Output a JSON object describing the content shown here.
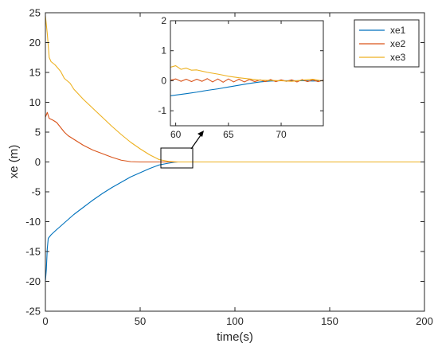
{
  "chart_data": {
    "type": "line",
    "title": "",
    "xlabel": "time(s)",
    "ylabel": "xe (m)",
    "xlim": [
      0,
      200
    ],
    "ylim": [
      -25,
      25
    ],
    "xticks": [
      "0",
      "50",
      "100",
      "150",
      "200"
    ],
    "yticks": [
      "25",
      "20",
      "15",
      "10",
      "5",
      "0",
      "-5",
      "-10",
      "-15",
      "-20",
      "-25"
    ],
    "grid": false,
    "legend_position": "top-right",
    "series": [
      {
        "name": "xe1",
        "color": "#0072BD",
        "points": [
          [
            0,
            -20
          ],
          [
            0.5,
            -18
          ],
          [
            1,
            -14.5
          ],
          [
            1.5,
            -12.8
          ],
          [
            3,
            -12.2
          ],
          [
            5,
            -11.6
          ],
          [
            10,
            -10.2
          ],
          [
            15,
            -8.8
          ],
          [
            20,
            -7.6
          ],
          [
            25,
            -6.4
          ],
          [
            30,
            -5.3
          ],
          [
            35,
            -4.3
          ],
          [
            40,
            -3.4
          ],
          [
            45,
            -2.5
          ],
          [
            50,
            -1.8
          ],
          [
            55,
            -1.1
          ],
          [
            60,
            -0.5
          ],
          [
            65,
            -0.2
          ],
          [
            68,
            -0.05
          ],
          [
            70,
            0
          ],
          [
            75,
            0
          ],
          [
            200,
            0
          ]
        ]
      },
      {
        "name": "xe2",
        "color": "#D95319",
        "points": [
          [
            0,
            7.5
          ],
          [
            1,
            8.3
          ],
          [
            2,
            7.3
          ],
          [
            4,
            7.0
          ],
          [
            6,
            6.6
          ],
          [
            8,
            5.8
          ],
          [
            10,
            5.0
          ],
          [
            12,
            4.4
          ],
          [
            15,
            3.8
          ],
          [
            20,
            2.8
          ],
          [
            25,
            2.0
          ],
          [
            30,
            1.4
          ],
          [
            35,
            0.8
          ],
          [
            40,
            0.3
          ],
          [
            45,
            0.05
          ],
          [
            50,
            0
          ],
          [
            55,
            0
          ],
          [
            60,
            0
          ],
          [
            200,
            0
          ]
        ]
      },
      {
        "name": "xe3",
        "color": "#EDB120",
        "points": [
          [
            0,
            24.5
          ],
          [
            1,
            21.5
          ],
          [
            2,
            17.5
          ],
          [
            3,
            16.8
          ],
          [
            5,
            16.3
          ],
          [
            8,
            15.2
          ],
          [
            10,
            14.0
          ],
          [
            13,
            13.2
          ],
          [
            15,
            12.2
          ],
          [
            20,
            10.5
          ],
          [
            25,
            9.0
          ],
          [
            30,
            7.5
          ],
          [
            35,
            6.0
          ],
          [
            40,
            4.6
          ],
          [
            45,
            3.3
          ],
          [
            50,
            2.2
          ],
          [
            55,
            1.2
          ],
          [
            60,
            0.4
          ],
          [
            65,
            0.1
          ],
          [
            70,
            0
          ],
          [
            200,
            0
          ]
        ]
      }
    ],
    "inset": {
      "xlim": [
        59.5,
        74
      ],
      "ylim": [
        -1.5,
        2
      ],
      "xticks": [
        "60",
        "65",
        "70"
      ],
      "yticks": [
        "2",
        "1",
        "0",
        "-1"
      ],
      "series": [
        {
          "name": "xe1",
          "points": [
            [
              59.5,
              -0.5
            ],
            [
              61,
              -0.43
            ],
            [
              62,
              -0.38
            ],
            [
              63,
              -0.32
            ],
            [
              64,
              -0.27
            ],
            [
              65,
              -0.21
            ],
            [
              66,
              -0.15
            ],
            [
              67,
              -0.09
            ],
            [
              68,
              -0.04
            ],
            [
              69,
              -0.01
            ],
            [
              70,
              0
            ],
            [
              71,
              0
            ],
            [
              72,
              0
            ],
            [
              73,
              -0.01
            ],
            [
              74,
              0
            ]
          ]
        },
        {
          "name": "xe2",
          "points": [
            [
              59.5,
              0.02
            ],
            [
              60,
              0.06
            ],
            [
              60.5,
              -0.02
            ],
            [
              61,
              0.05
            ],
            [
              61.5,
              -0.03
            ],
            [
              62,
              0.05
            ],
            [
              62.5,
              -0.02
            ],
            [
              63,
              0.07
            ],
            [
              63.5,
              -0.04
            ],
            [
              64,
              0.06
            ],
            [
              64.5,
              -0.05
            ],
            [
              65,
              0.06
            ],
            [
              65.5,
              -0.04
            ],
            [
              66,
              0.05
            ],
            [
              66.5,
              -0.04
            ],
            [
              67,
              0.04
            ],
            [
              67.5,
              -0.03
            ],
            [
              68,
              0.03
            ],
            [
              68.5,
              -0.03
            ],
            [
              69,
              0.04
            ],
            [
              69.5,
              -0.03
            ],
            [
              70,
              0.03
            ],
            [
              70.5,
              -0.02
            ],
            [
              71,
              0.03
            ],
            [
              71.5,
              -0.04
            ],
            [
              72,
              0.04
            ],
            [
              72.5,
              -0.03
            ],
            [
              73,
              0.03
            ],
            [
              73.5,
              -0.03
            ],
            [
              74,
              0.02
            ]
          ]
        },
        {
          "name": "xe3",
          "points": [
            [
              59.5,
              0.45
            ],
            [
              60,
              0.5
            ],
            [
              60.5,
              0.38
            ],
            [
              61,
              0.42
            ],
            [
              61.5,
              0.35
            ],
            [
              62,
              0.36
            ],
            [
              63,
              0.28
            ],
            [
              64,
              0.22
            ],
            [
              65,
              0.15
            ],
            [
              66,
              0.1
            ],
            [
              67,
              0.06
            ],
            [
              68,
              0.02
            ],
            [
              69,
              0.01
            ],
            [
              70,
              0
            ],
            [
              71,
              -0.02
            ],
            [
              72,
              0.02
            ],
            [
              73,
              0.05
            ],
            [
              74,
              -0.01
            ]
          ]
        }
      ]
    }
  }
}
